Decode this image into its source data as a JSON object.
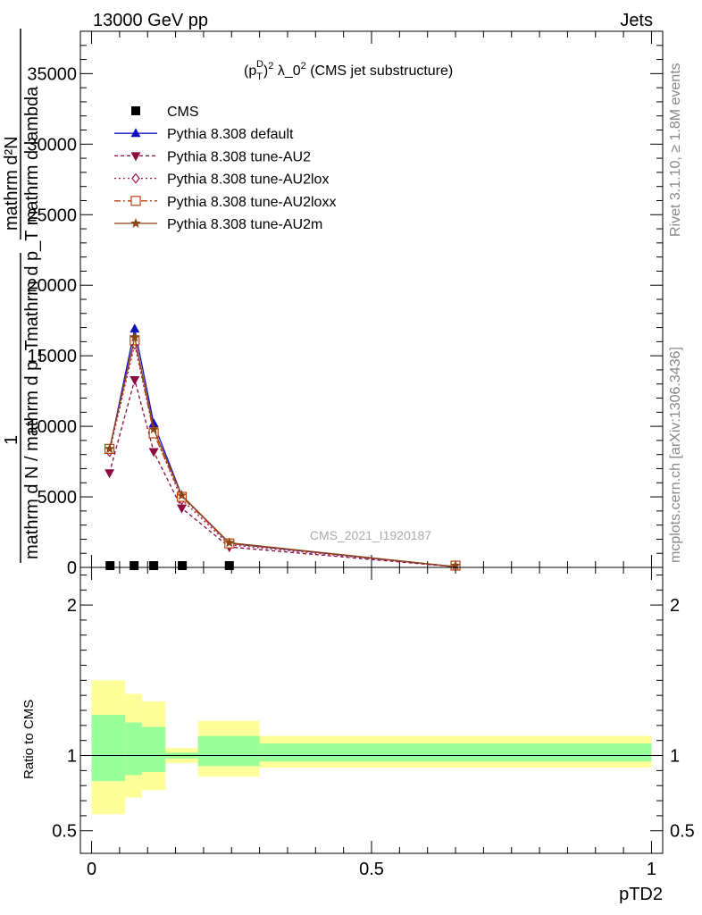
{
  "header": {
    "energy": "13000 GeV pp",
    "category": "Jets"
  },
  "side_labels": {
    "rivet": "Rivet 3.1.10, ≥ 1.8M events",
    "mcplots": "mcplots.cern.ch [arXiv:1306.3436]"
  },
  "watermark": "CMS_2021_I1920187",
  "chart_data": [
    {
      "type": "line",
      "title": "(p_T^D)^2 λ_0^2 (CMS jet substructure)",
      "title_parts": {
        "p": "(p",
        "sup_d": "D",
        "sub_t": "T",
        "close": ")",
        "sup_2": "2",
        "rest": " λ_0",
        "sup_2b": "2",
        "tail": " (CMS jet substructure)"
      },
      "ylabel_lines": [
        "mathrm d²N",
        "mathrm d p_T mathrm d lambda",
        "1",
        "mathrm d N / mathrm d p_T"
      ],
      "xlabel": "pTD2",
      "xlim": [
        -0.02,
        1.02
      ],
      "ylim": [
        0,
        38000
      ],
      "yticks": [
        0,
        5000,
        10000,
        15000,
        20000,
        25000,
        30000,
        35000
      ],
      "ytick_labels": [
        "0",
        "5000",
        "10000",
        "15000",
        "20000",
        "25000",
        "30000",
        "35000"
      ],
      "legend_placement": "top-left",
      "series": [
        {
          "name": "CMS",
          "color": "#000000",
          "marker": "square",
          "x": [
            0.033,
            0.076,
            0.111,
            0.162,
            0.246
          ],
          "y": [
            60,
            60,
            60,
            60,
            60
          ]
        },
        {
          "name": "Pythia 8.308 default",
          "color": "#1010c0",
          "marker": "triangle-up",
          "dash": "",
          "x": [
            0.032,
            0.077,
            0.111,
            0.161,
            0.246,
            0.65
          ],
          "y": [
            8300,
            16900,
            10200,
            5100,
            1700,
            50
          ]
        },
        {
          "name": "Pythia 8.308 tune-AU2",
          "color": "#8b0a40",
          "marker": "triangle-down",
          "dash": "4,3",
          "x": [
            0.032,
            0.077,
            0.111,
            0.161,
            0.246,
            0.65
          ],
          "y": [
            6700,
            13300,
            8200,
            4200,
            1450,
            40
          ]
        },
        {
          "name": "Pythia 8.308 tune-AU2lox",
          "color": "#a01050",
          "marker": "diamond-open",
          "dash": "2,3",
          "x": [
            0.032,
            0.077,
            0.111,
            0.161,
            0.246,
            0.65
          ],
          "y": [
            8200,
            15800,
            9600,
            4800,
            1600,
            45
          ]
        },
        {
          "name": "Pythia 8.308 tune-AU2loxx",
          "color": "#c04010",
          "marker": "square-open",
          "dash": "7,3,2,3",
          "x": [
            0.032,
            0.077,
            0.111,
            0.161,
            0.246,
            0.65
          ],
          "y": [
            8400,
            16100,
            9500,
            5000,
            1700,
            50
          ]
        },
        {
          "name": "Pythia 8.308 tune-AU2m",
          "color": "#8b4513",
          "marker": "star",
          "dash": "",
          "x": [
            0.032,
            0.077,
            0.111,
            0.161,
            0.246,
            0.65
          ],
          "y": [
            8400,
            16300,
            9800,
            5100,
            1750,
            50
          ]
        }
      ]
    },
    {
      "type": "area",
      "ylabel": "Ratio to CMS",
      "xlim": [
        -0.02,
        1.02
      ],
      "ylim": [
        0.35,
        2.25
      ],
      "xticks": [
        0,
        0.5,
        1
      ],
      "xtick_labels": [
        "0",
        "0.5",
        "1"
      ],
      "yticks": [
        0.5,
        1,
        2
      ],
      "ytick_labels": [
        "0.5",
        "1",
        "2"
      ],
      "bands": {
        "x_edges": [
          0.0,
          0.06,
          0.09,
          0.132,
          0.19,
          0.3,
          1.0
        ],
        "outer_low": [
          0.61,
          0.72,
          0.77,
          0.95,
          0.86,
          0.92
        ],
        "outer_high": [
          1.5,
          1.41,
          1.36,
          1.05,
          1.23,
          1.13
        ],
        "inner_low": [
          0.83,
          0.87,
          0.89,
          0.98,
          0.93,
          0.96
        ],
        "inner_high": [
          1.27,
          1.22,
          1.19,
          1.02,
          1.13,
          1.08
        ],
        "outer_color": "#ffff99",
        "inner_color": "#99ff99"
      },
      "reference_line": 1
    }
  ]
}
